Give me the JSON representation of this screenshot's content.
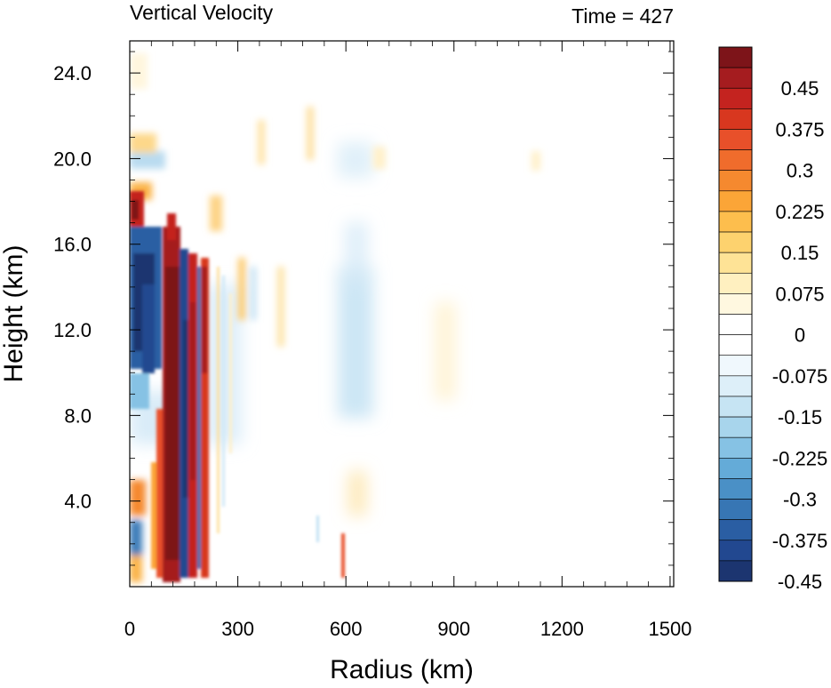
{
  "chart_data": {
    "type": "heatmap",
    "title": "Vertical Velocity",
    "subtitle": "Time = 427",
    "xlabel": "Radius (km)",
    "ylabel": "Height (km)",
    "xlim": [
      0,
      1510
    ],
    "ylim": [
      0,
      25.5
    ],
    "x_ticks": [
      0,
      300,
      600,
      900,
      1200,
      1500
    ],
    "x_tick_labels": [
      "0",
      "300",
      "600",
      "900",
      "1200",
      "1500"
    ],
    "y_ticks": [
      4,
      8,
      12,
      16,
      20,
      24
    ],
    "y_tick_labels": [
      "4.0",
      "8.0",
      "12.0",
      "16.0",
      "20.0",
      "24.0"
    ],
    "colorbar": {
      "labels": [
        "0.45",
        "0.375",
        "0.3",
        "0.225",
        "0.15",
        "0.075",
        "0",
        "-0.075",
        "-0.15",
        "-0.225",
        "-0.3",
        "-0.375",
        "-0.45"
      ],
      "levels_from_top": [
        "#7d1419",
        "#a51c1f",
        "#c4231f",
        "#d8371f",
        "#e8502a",
        "#f06c2c",
        "#f5892f",
        "#fba537",
        "#fdbe4d",
        "#fdd26e",
        "#fee396",
        "#fff0c0",
        "#fff8e0",
        "#ffffff",
        "#ffffff",
        "#f0f8fd",
        "#ddeff9",
        "#c6e4f3",
        "#a8d5ec",
        "#86c2e4",
        "#64abd8",
        "#4a90c6",
        "#3776b4",
        "#2a5ea3",
        "#224890",
        "#1c3570"
      ]
    },
    "features": [
      {
        "r": [
          60,
          95
        ],
        "z": [
          0.5,
          16.5
        ],
        "w": -0.5
      },
      {
        "r": [
          100,
          150
        ],
        "z": [
          0.5,
          17.5
        ],
        "w": 0.5
      },
      {
        "r": [
          160,
          185
        ],
        "z": [
          0.5,
          16
        ],
        "w": -0.45
      },
      {
        "r": [
          190,
          220
        ],
        "z": [
          0.5,
          15.5
        ],
        "w": 0.45
      },
      {
        "r": [
          0,
          50
        ],
        "z": [
          16.5,
          19
        ],
        "w": 0.4
      },
      {
        "r": [
          0,
          30
        ],
        "z": [
          2,
          6.5
        ],
        "w": 0.35
      },
      {
        "r": [
          560,
          660
        ],
        "z": [
          7.5,
          15
        ],
        "w": -0.12
      },
      {
        "r": [
          840,
          900
        ],
        "z": [
          8,
          14
        ],
        "w": 0.05
      }
    ]
  }
}
